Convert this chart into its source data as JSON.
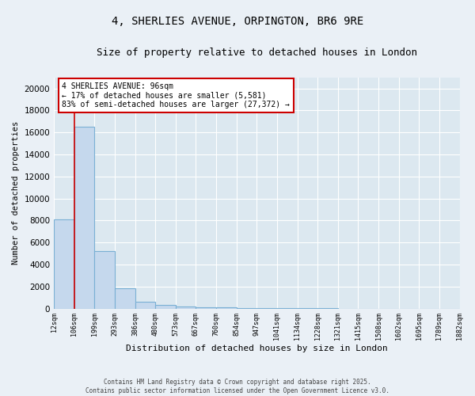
{
  "title": "4, SHERLIES AVENUE, ORPINGTON, BR6 9RE",
  "subtitle": "Size of property relative to detached houses in London",
  "xlabel": "Distribution of detached houses by size in London",
  "ylabel": "Number of detached properties",
  "bar_values": [
    8100,
    16500,
    5200,
    1820,
    620,
    330,
    190,
    120,
    80,
    50,
    30,
    15,
    10,
    8,
    5,
    3,
    2,
    2,
    1,
    1
  ],
  "bin_labels": [
    "12sqm",
    "106sqm",
    "199sqm",
    "293sqm",
    "386sqm",
    "480sqm",
    "573sqm",
    "667sqm",
    "760sqm",
    "854sqm",
    "947sqm",
    "1041sqm",
    "1134sqm",
    "1228sqm",
    "1321sqm",
    "1415sqm",
    "1508sqm",
    "1602sqm",
    "1695sqm",
    "1789sqm",
    "1882sqm"
  ],
  "bar_color": "#c5d8ed",
  "bar_edge_color": "#7ab0d4",
  "property_line_x": 1.0,
  "annotation_text": "4 SHERLIES AVENUE: 96sqm\n← 17% of detached houses are smaller (5,581)\n83% of semi-detached houses are larger (27,372) →",
  "annotation_box_color": "#ffffff",
  "annotation_box_edge_color": "#cc0000",
  "red_line_color": "#cc0000",
  "ylim": [
    0,
    21000
  ],
  "yticks": [
    0,
    2000,
    4000,
    6000,
    8000,
    10000,
    12000,
    14000,
    16000,
    18000,
    20000
  ],
  "footer_line1": "Contains HM Land Registry data © Crown copyright and database right 2025.",
  "footer_line2": "Contains public sector information licensed under the Open Government Licence v3.0.",
  "background_color": "#eaf0f6",
  "plot_bg_color": "#dce8f0",
  "grid_color": "#ffffff"
}
